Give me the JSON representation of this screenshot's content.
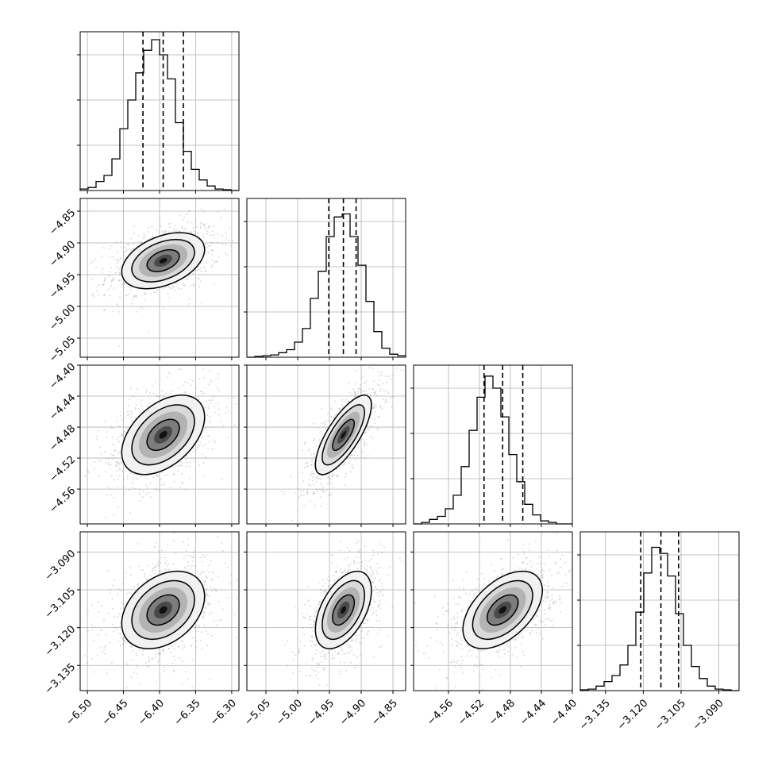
{
  "chart_data": {
    "type": "corner",
    "grid": true,
    "params": [
      {
        "mean": -6.395,
        "q16": -6.423,
        "q84": -6.367,
        "xlim": [
          -6.51,
          -6.29
        ],
        "ticks": [
          "-6.50",
          "-6.45",
          "-6.40",
          "-6.35",
          "-6.30"
        ],
        "hist": [
          0.01,
          0.02,
          0.06,
          0.1,
          0.21,
          0.41,
          0.6,
          0.78,
          0.93,
          1.0,
          0.9,
          0.74,
          0.45,
          0.26,
          0.14,
          0.07,
          0.03,
          0.01,
          0.005,
          0.0
        ]
      },
      {
        "mean": -4.928,
        "q16": -4.951,
        "q84": -4.908,
        "xlim": [
          -5.08,
          -4.83
        ],
        "ticks": [
          "-5.05",
          "-5.00",
          "-4.95",
          "-4.90",
          "-4.85"
        ],
        "hist": [
          0.0,
          0.005,
          0.01,
          0.015,
          0.03,
          0.05,
          0.1,
          0.19,
          0.39,
          0.57,
          0.8,
          0.93,
          0.95,
          0.8,
          0.61,
          0.37,
          0.17,
          0.06,
          0.02,
          0.01
        ]
      },
      {
        "mean": -4.49,
        "q16": -4.514,
        "q84": -4.464,
        "xlim": [
          -4.605,
          -4.4
        ],
        "ticks": [
          "-4.56",
          "-4.52",
          "-4.48",
          "-4.44",
          "-4.40"
        ],
        "hist": [
          0.0,
          0.01,
          0.03,
          0.05,
          0.1,
          0.19,
          0.38,
          0.62,
          0.84,
          0.98,
          0.9,
          0.71,
          0.46,
          0.28,
          0.13,
          0.06,
          0.02,
          0.01,
          0.0,
          0.0
        ]
      },
      {
        "mean": -3.113,
        "q16": -3.121,
        "q84": -3.106,
        "xlim": [
          -3.145,
          -3.082
        ],
        "ticks": [
          "-3.135",
          "-3.120",
          "-3.105",
          "-3.090"
        ],
        "hist": [
          0.005,
          0.01,
          0.03,
          0.06,
          0.1,
          0.17,
          0.3,
          0.52,
          0.78,
          0.95,
          0.91,
          0.76,
          0.51,
          0.3,
          0.16,
          0.08,
          0.03,
          0.01,
          0.005,
          0.0
        ]
      }
    ],
    "correlations": [
      [
        1.0,
        0.4,
        0.45,
        0.35
      ],
      [
        0.4,
        1.0,
        0.75,
        0.5
      ],
      [
        0.45,
        0.75,
        1.0,
        0.5
      ],
      [
        0.35,
        0.5,
        0.5,
        1.0
      ]
    ]
  }
}
